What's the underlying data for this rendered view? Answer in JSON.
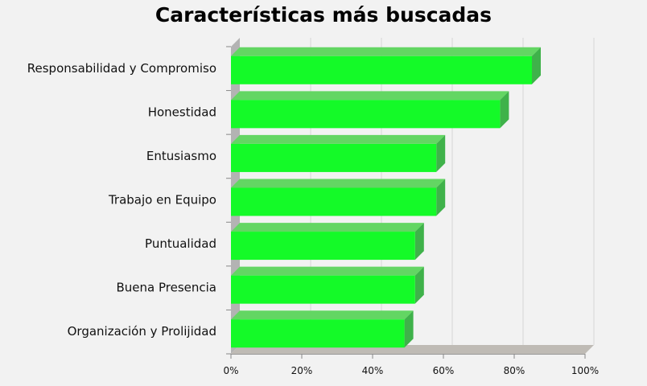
{
  "chart_data": {
    "type": "bar",
    "orientation": "horizontal",
    "title": "Características más buscadas",
    "categories": [
      "Responsabilidad y Compromiso",
      "Honestidad",
      "Entusiasmo",
      "Trabajo en Equipo",
      "Puntualidad",
      "Buena Presencia",
      "Organización y Prolijidad"
    ],
    "values": [
      85,
      76,
      58,
      58,
      52,
      52,
      49
    ],
    "x_ticks": [
      "0%",
      "20%",
      "40%",
      "60%",
      "80%",
      "100%"
    ],
    "xlim": [
      0,
      100
    ],
    "grid": true,
    "bar_color": "#14fa28",
    "bar_top_color": "#63d663",
    "bar_side_color": "#3fb24a",
    "wall_color": "#b3b3b3",
    "floor_color": "#bfbbb5",
    "gridline_color": "#d6d6d6"
  }
}
